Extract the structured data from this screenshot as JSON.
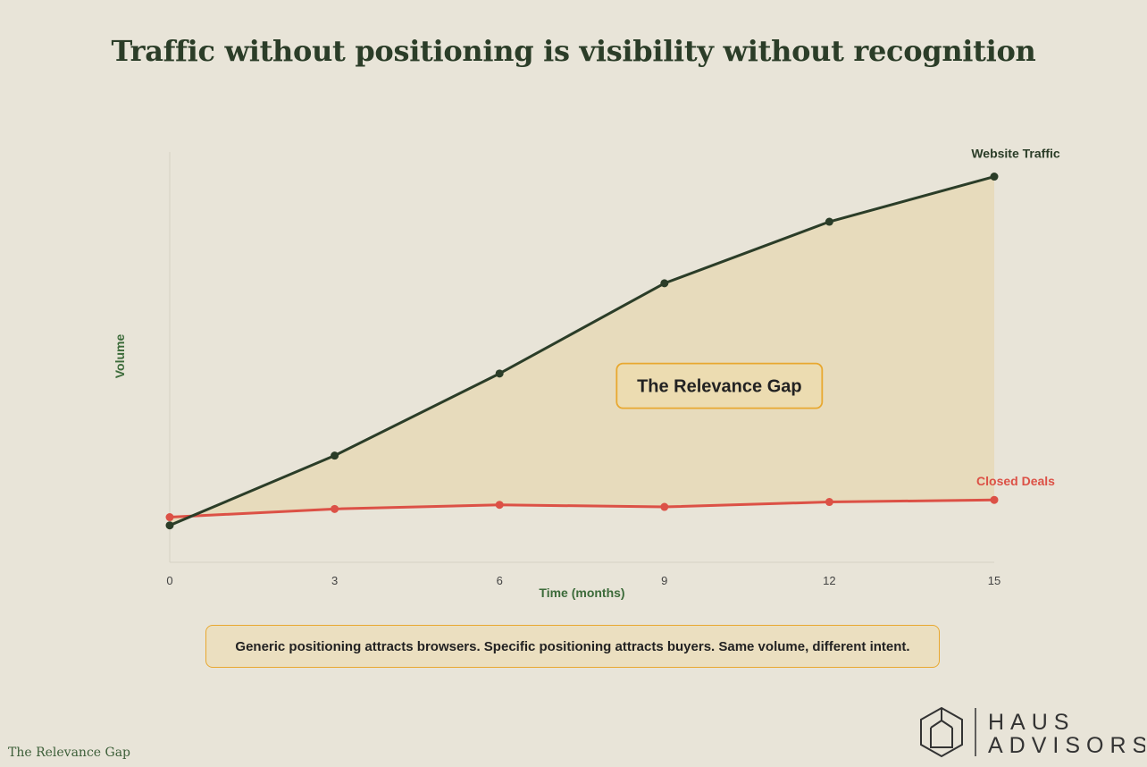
{
  "page": {
    "title": "Traffic without positioning is visibility without recognition",
    "callout_text": "Generic positioning attracts browsers. Specific positioning attracts buyers. Same volume, different intent.",
    "footer_text": "The Relevance Gap",
    "logo": {
      "line1": "HAUS",
      "line2": "ADVISORS",
      "icon": "house-hexagon-icon"
    }
  },
  "colors": {
    "traffic": "#2b3d28",
    "deals": "#dc5146",
    "gap_fill": "#e6d9b7",
    "accent": "#e8a830",
    "axis_label": "#3c6b3a",
    "background": "#e8e4d8"
  },
  "chart_data": {
    "type": "line",
    "title": "Traffic without positioning is visibility without recognition",
    "xlabel": "Time (months)",
    "ylabel": "Volume",
    "x": [
      0,
      3,
      6,
      9,
      12,
      15
    ],
    "xlim": [
      0,
      15
    ],
    "ylim": [
      0,
      100
    ],
    "y_ticks_shown": false,
    "grid": false,
    "series": [
      {
        "name": "Website Traffic",
        "values": [
          9,
          26,
          46,
          68,
          83,
          94
        ]
      },
      {
        "name": "Closed Deals",
        "values": [
          11,
          13,
          14,
          13.5,
          14.7,
          15.2
        ]
      }
    ],
    "annotations": [
      {
        "text": "The Relevance Gap",
        "x": 10,
        "y": 43
      }
    ],
    "legend": "direct labels at series ends"
  }
}
